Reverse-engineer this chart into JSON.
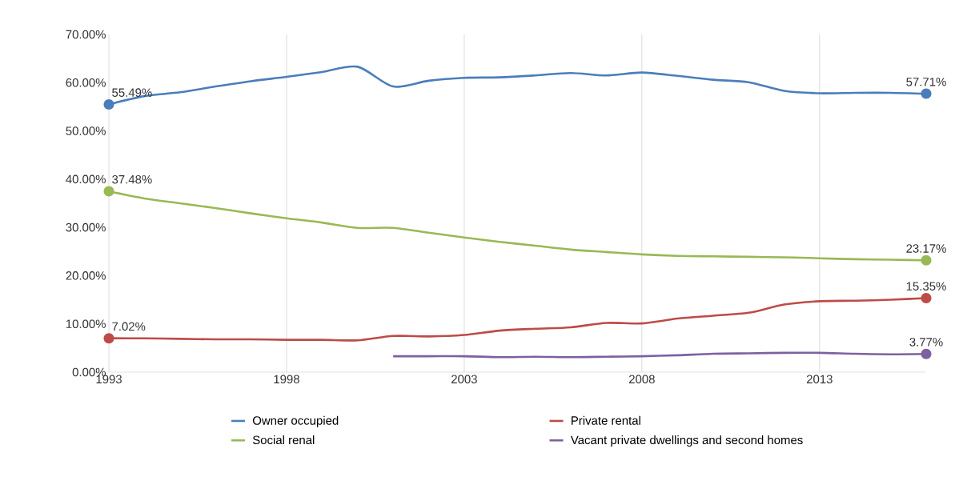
{
  "chart_data": {
    "type": "line",
    "x": [
      1993,
      1994,
      1995,
      1996,
      1997,
      1998,
      1999,
      2000,
      2001,
      2002,
      2003,
      2004,
      2005,
      2006,
      2007,
      2008,
      2009,
      2010,
      2011,
      2012,
      2013,
      2014,
      2015,
      2016
    ],
    "series": [
      {
        "name": "Owner occupied",
        "color": "#4a7ebb",
        "values": [
          55.49,
          57.2,
          58.0,
          59.2,
          60.3,
          61.2,
          62.2,
          63.3,
          59.2,
          60.4,
          61.0,
          61.1,
          61.5,
          62.0,
          61.5,
          62.1,
          61.4,
          60.6,
          60.1,
          58.3,
          57.8,
          57.9,
          57.9,
          57.71
        ],
        "value_labels": [
          "55.49%",
          null,
          null,
          null,
          null,
          null,
          null,
          null,
          null,
          null,
          null,
          null,
          null,
          null,
          null,
          null,
          null,
          null,
          null,
          null,
          null,
          null,
          null,
          "57.71%"
        ]
      },
      {
        "name": "Private rental",
        "color": "#be4b48",
        "values": [
          7.02,
          7.0,
          6.9,
          6.8,
          6.8,
          6.7,
          6.7,
          6.6,
          7.5,
          7.4,
          7.7,
          8.6,
          9.0,
          9.3,
          10.2,
          10.1,
          11.1,
          11.7,
          12.3,
          14.0,
          14.7,
          14.8,
          15.0,
          15.35
        ],
        "value_labels": [
          "7.02%",
          null,
          null,
          null,
          null,
          null,
          null,
          null,
          null,
          null,
          null,
          null,
          null,
          null,
          null,
          null,
          null,
          null,
          null,
          null,
          null,
          null,
          null,
          "15.35%"
        ]
      },
      {
        "name": "Social renal",
        "color": "#98b954",
        "values": [
          37.48,
          36.0,
          35.0,
          34.0,
          32.9,
          31.9,
          31.0,
          29.9,
          29.9,
          28.9,
          27.9,
          27.0,
          26.2,
          25.4,
          24.9,
          24.4,
          24.1,
          24.0,
          23.9,
          23.8,
          23.6,
          23.4,
          23.3,
          23.17
        ],
        "value_labels": [
          "37.48%",
          null,
          null,
          null,
          null,
          null,
          null,
          null,
          null,
          null,
          null,
          null,
          null,
          null,
          null,
          null,
          null,
          null,
          null,
          null,
          null,
          null,
          null,
          "23.17%"
        ]
      },
      {
        "name": "Vacant private dwellings and second homes",
        "color": "#7d60a0",
        "x": [
          2001,
          2002,
          2003,
          2004,
          2005,
          2006,
          2007,
          2008,
          2009,
          2010,
          2011,
          2012,
          2013,
          2014,
          2015,
          2016
        ],
        "values": [
          3.3,
          3.3,
          3.3,
          3.1,
          3.2,
          3.1,
          3.2,
          3.3,
          3.5,
          3.8,
          3.9,
          4.0,
          4.0,
          3.8,
          3.7,
          3.77
        ],
        "value_labels": [
          null,
          null,
          null,
          null,
          null,
          null,
          null,
          null,
          null,
          null,
          null,
          null,
          null,
          null,
          null,
          "3.77%"
        ]
      }
    ],
    "xlim": [
      1993,
      2016
    ],
    "xticks": [
      1993,
      1998,
      2003,
      2008,
      2013
    ],
    "ylim": [
      0,
      70
    ],
    "yticks": [
      {
        "value": 0,
        "label": "0.00%"
      },
      {
        "value": 10,
        "label": "10.00%"
      },
      {
        "value": 20,
        "label": "20.00%"
      },
      {
        "value": 30,
        "label": "30.00%"
      },
      {
        "value": 40,
        "label": "40.00%"
      },
      {
        "value": 50,
        "label": "50.00%"
      },
      {
        "value": 60,
        "label": "60.00%"
      },
      {
        "value": 70,
        "label": "70.00%"
      }
    ],
    "grid": "x",
    "legend": "bottom"
  }
}
